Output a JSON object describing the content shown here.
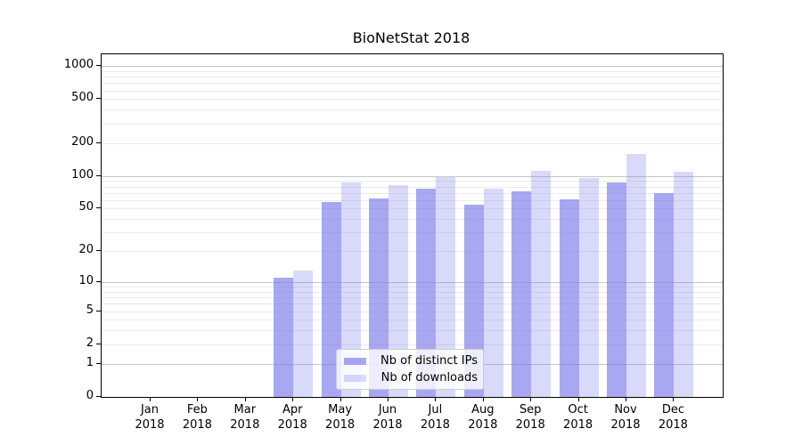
{
  "chart_data": {
    "type": "bar",
    "title": "BioNetStat 2018",
    "categories": [
      {
        "month": "Jan",
        "year": "2018"
      },
      {
        "month": "Feb",
        "year": "2018"
      },
      {
        "month": "Mar",
        "year": "2018"
      },
      {
        "month": "Apr",
        "year": "2018"
      },
      {
        "month": "May",
        "year": "2018"
      },
      {
        "month": "Jun",
        "year": "2018"
      },
      {
        "month": "Jul",
        "year": "2018"
      },
      {
        "month": "Aug",
        "year": "2018"
      },
      {
        "month": "Sep",
        "year": "2018"
      },
      {
        "month": "Oct",
        "year": "2018"
      },
      {
        "month": "Nov",
        "year": "2018"
      },
      {
        "month": "Dec",
        "year": "2018"
      }
    ],
    "series": [
      {
        "name": "Nb of distinct IPs",
        "alpha": 0.65,
        "values": [
          0,
          0,
          0,
          11,
          58,
          62,
          77,
          54,
          72,
          61,
          87,
          70
        ]
      },
      {
        "name": "Nb of downloads",
        "alpha": 0.28,
        "values": [
          0,
          0,
          0,
          13,
          87,
          82,
          98,
          77,
          112,
          96,
          160,
          110
        ]
      }
    ],
    "y_axis": {
      "scale": "log1p",
      "tick_labels": [
        "1000",
        "500",
        "200",
        "100",
        "50",
        "20",
        "10",
        "5",
        "2",
        "1",
        "0"
      ],
      "major_gridlines": [
        1,
        10,
        100,
        1000
      ],
      "range": [
        0,
        1280
      ],
      "grid": "on"
    },
    "x_axis": {
      "grid": "off"
    },
    "legend": {
      "position": "lower-center"
    },
    "colors": {
      "bar_base": "#7878eb",
      "major_grid": "#c6c6c6",
      "minor_grid": "#ebebeb",
      "axis": "#000000",
      "text": "#000000",
      "legend_border": "#cccccc"
    }
  }
}
